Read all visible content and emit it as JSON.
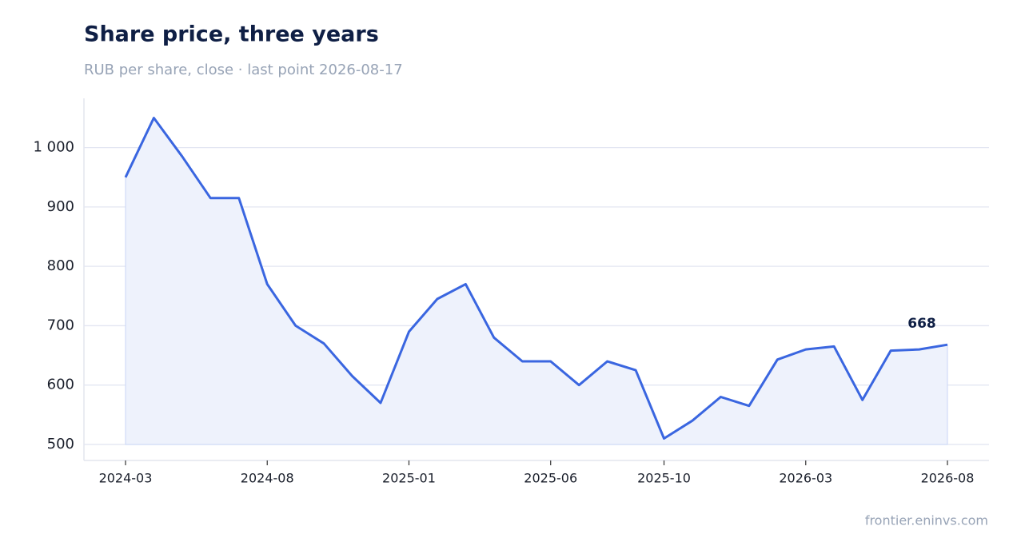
{
  "chart_data": {
    "type": "line",
    "title": "Share price, three years",
    "subtitle": "RUB per share, close · last point 2026-08-17",
    "source": "frontier.eninvs.com",
    "x": [
      "2024-03",
      "2024-04",
      "2024-05",
      "2024-06",
      "2024-07",
      "2024-08",
      "2024-09",
      "2024-10",
      "2024-11",
      "2024-12",
      "2025-01",
      "2025-02",
      "2025-03",
      "2025-04",
      "2025-05",
      "2025-06",
      "2025-07",
      "2025-08",
      "2025-09",
      "2025-10",
      "2025-11",
      "2025-12",
      "2026-01",
      "2026-02",
      "2026-03",
      "2026-04",
      "2026-05",
      "2026-06",
      "2026-07",
      "2026-08"
    ],
    "series": [
      {
        "name": "Close",
        "color": "#3a66e0",
        "values": [
          950,
          1050,
          985,
          915,
          915,
          770,
          700,
          670,
          615,
          570,
          690,
          745,
          770,
          680,
          640,
          640,
          600,
          640,
          625,
          510,
          540,
          580,
          565,
          643,
          660,
          665,
          575,
          658,
          660,
          668
        ]
      }
    ],
    "xlim": [
      "2024-03",
      "2026-08"
    ],
    "xticks": [
      "2024-03",
      "2024-08",
      "2025-01",
      "2025-06",
      "2025-10",
      "2026-03",
      "2026-08"
    ],
    "ylim": [
      473,
      1083
    ],
    "yticks": [
      500,
      600,
      700,
      800,
      900,
      {
        "value": 1000,
        "label": "1 000"
      }
    ],
    "grid": true,
    "area_fill": "#eef2fc"
  }
}
